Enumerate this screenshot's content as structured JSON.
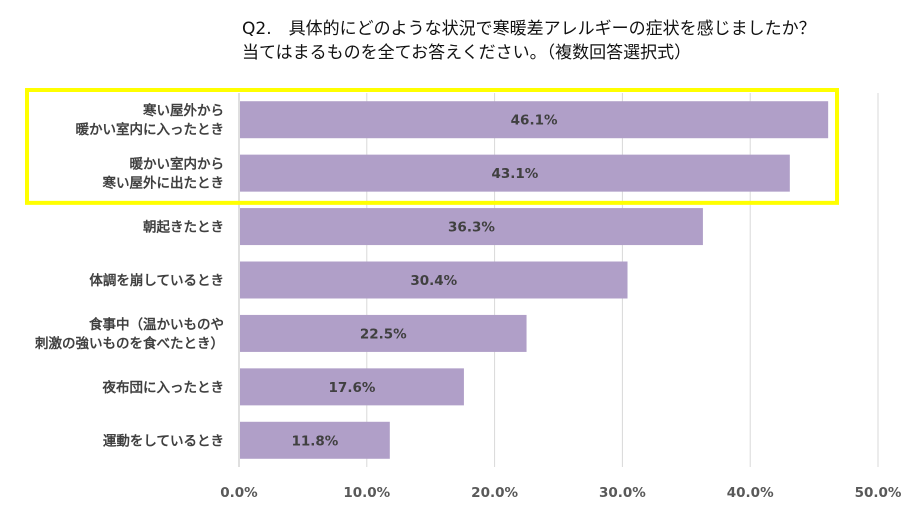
{
  "chart_data": {
    "type": "bar",
    "orientation": "horizontal",
    "title": [
      "Q2.　具体的にどのような状況で寒暖差アレルギーの症状を感じましたか？",
      "当てはまるものを全てお答えください。（複数回答選択式）"
    ],
    "categories": [
      [
        "寒い屋外から",
        "暖かい室内に入ったとき"
      ],
      [
        "暖かい室内から",
        "寒い屋外に出たとき"
      ],
      [
        "朝起きたとき"
      ],
      [
        "体調を崩しているとき"
      ],
      [
        "食事中（温かいものや",
        "刺激の強いものを食べたとき）"
      ],
      [
        "夜布団に入ったとき"
      ],
      [
        "運動をしているとき"
      ]
    ],
    "values": [
      46.1,
      43.1,
      36.3,
      30.4,
      22.5,
      17.6,
      11.8
    ],
    "data_labels": [
      "46.1%",
      "43.1%",
      "36.3%",
      "30.4%",
      "22.5%",
      "17.6%",
      "11.8%"
    ],
    "xlim": [
      0,
      50
    ],
    "ticks": [
      0,
      10,
      20,
      30,
      40,
      50
    ],
    "tick_labels": [
      "0.0%",
      "10.0%",
      "20.0%",
      "30.0%",
      "40.0%",
      "50.0%"
    ],
    "grid": true,
    "highlight": {
      "indices": [
        0,
        1
      ]
    },
    "colors": {
      "bar": "#b09fc8",
      "grid": "#d9d9d9",
      "axis": "#bfbfbf",
      "highlight": "#ffff00"
    }
  }
}
